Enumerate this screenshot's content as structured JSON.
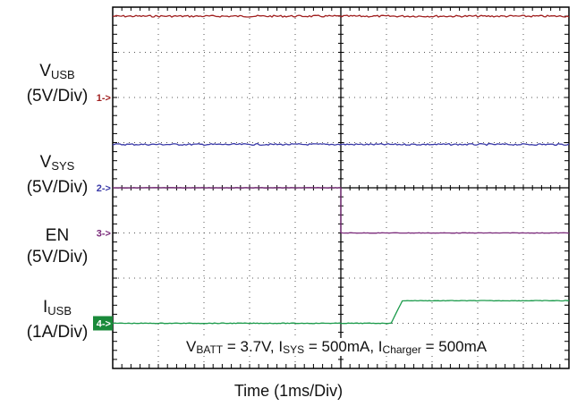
{
  "chart_data": {
    "type": "line",
    "xlabel": "Time (1ms/Div)",
    "annotation": {
      "v": "V",
      "v_sub": "BATT",
      "v_val": " = 3.7V, ",
      "i1": "I",
      "i1_sub": "SYS",
      "i1_val": " = 500mA, ",
      "i2": "I",
      "i2_sub": "Charger",
      "i2_val": " = 500mA"
    },
    "divisions": {
      "x": 10,
      "y": 8
    },
    "x_unit": "ms",
    "xlim": [
      0,
      10
    ],
    "channels": [
      {
        "marker": "1->",
        "name": "V",
        "name_sub": "USB",
        "scale": "(5V/Div)",
        "color": "#a02020",
        "ref_div": 6.0,
        "points": [
          [
            0,
            9.0
          ],
          [
            10,
            9.0
          ]
        ],
        "noise": 0.04
      },
      {
        "marker": "2->",
        "name": "V",
        "name_sub": "SYS",
        "scale": "(5V/Div)",
        "color": "#3a3aa8",
        "ref_div": 4.0,
        "points": [
          [
            0,
            4.8
          ],
          [
            10,
            4.8
          ]
        ],
        "noise": 0.035
      },
      {
        "marker": "3->",
        "name": "EN",
        "name_sub": "",
        "scale": "(5V/Div)",
        "color": "#7a2a7a",
        "ref_div": 3.0,
        "points": [
          [
            0,
            5.0
          ],
          [
            5.0,
            5.0
          ],
          [
            5.0,
            0.0
          ],
          [
            10,
            0.0
          ]
        ],
        "noise": 0.01
      },
      {
        "marker": "4->",
        "name": "I",
        "name_sub": "USB",
        "scale": "(1A/Div)",
        "color": "#1a9a4a",
        "ref_div": 1.0,
        "points": [
          [
            0,
            0.0
          ],
          [
            6.1,
            0.0
          ],
          [
            6.35,
            0.5
          ],
          [
            10,
            0.5
          ]
        ],
        "noise": 0.012
      }
    ],
    "colors": {
      "grid": "#555555",
      "frame": "#000000",
      "marker4_bg": "#1a8a3a"
    }
  }
}
